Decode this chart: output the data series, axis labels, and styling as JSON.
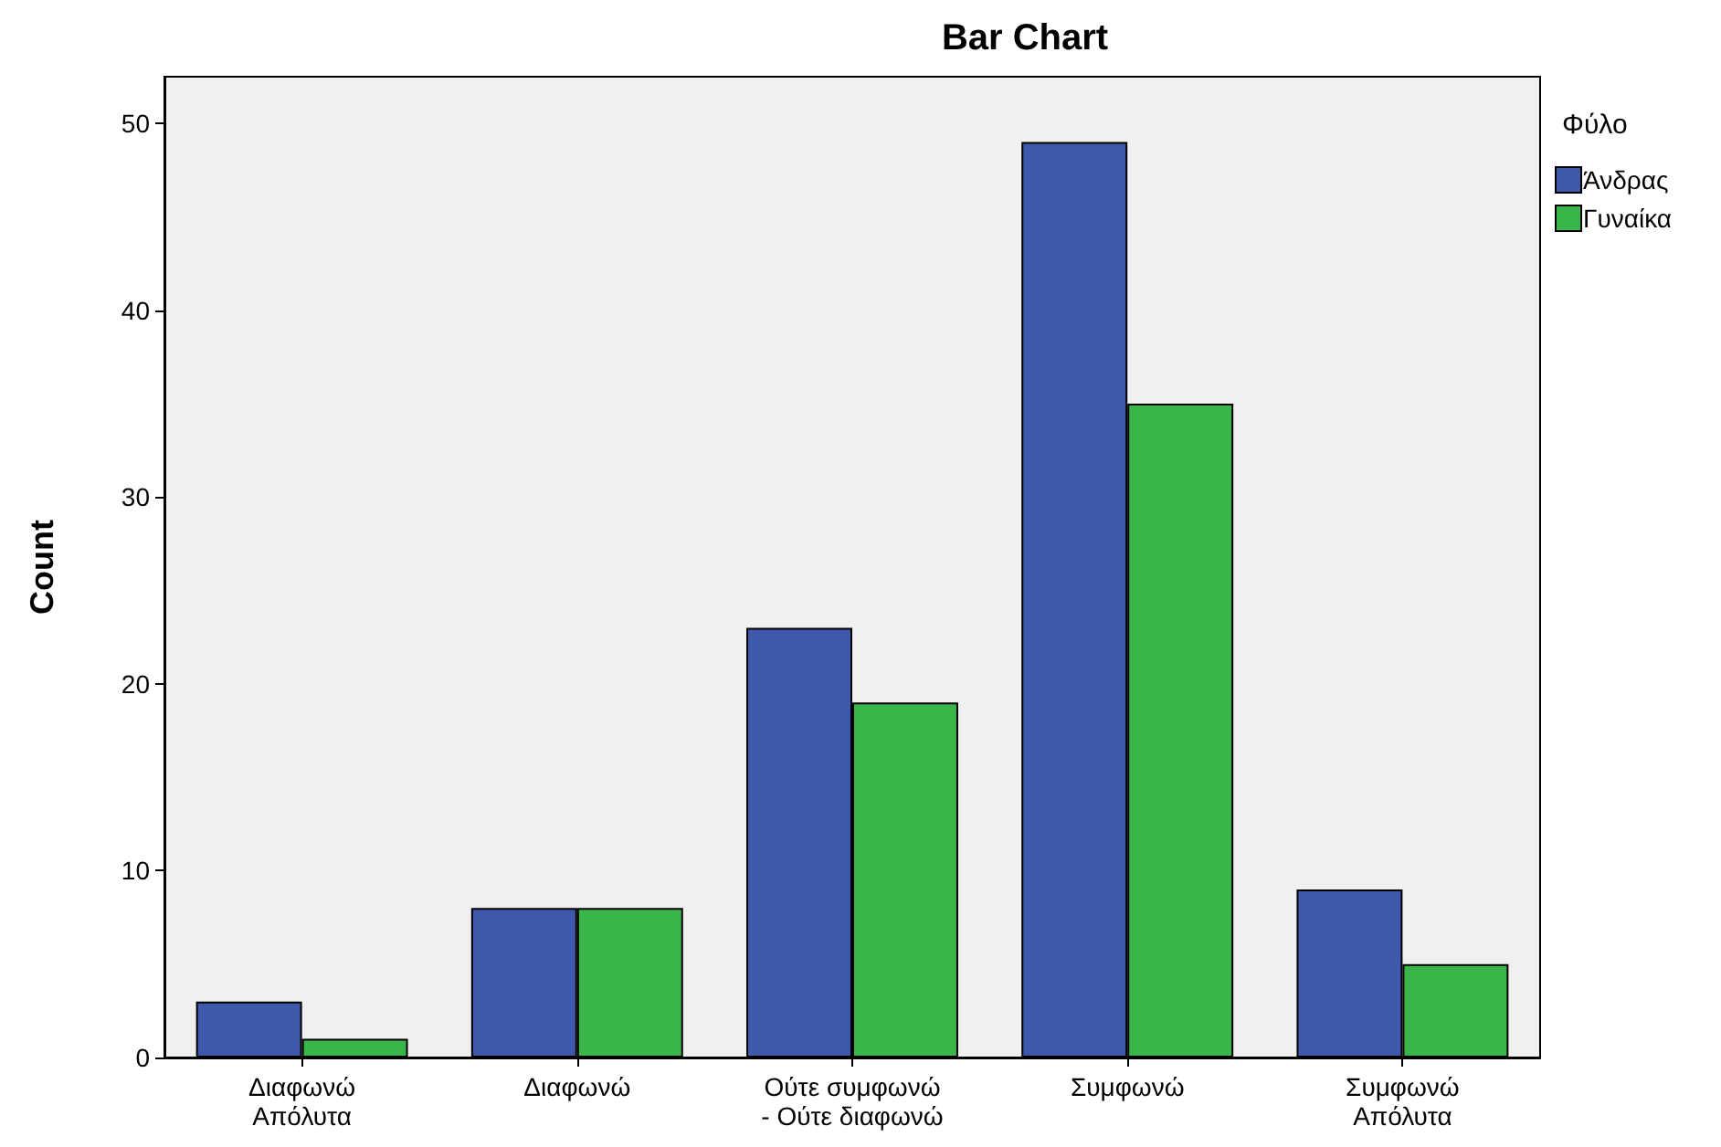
{
  "chart_data": {
    "type": "bar",
    "title": "Bar Chart",
    "ylabel": "Count",
    "legend_title": "Φύλο",
    "legend": "top right",
    "categories": [
      "Διαφωνώ\nΑπόλυτα",
      "Διαφωνώ",
      "Ούτε συμφωνώ\n- Ούτε διαφωνώ",
      "Συμφωνώ",
      "Συμφωνώ\nΑπόλυτα"
    ],
    "series": [
      {
        "name": "Άνδρας",
        "color": "#3e58ac",
        "values": [
          3,
          8,
          23,
          49,
          9
        ]
      },
      {
        "name": "Γυναίκα",
        "color": "#3ab54a",
        "values": [
          1,
          8,
          19,
          35,
          5
        ]
      }
    ],
    "ylim": [
      0,
      52.5
    ],
    "yticks": [
      0,
      10,
      20,
      30,
      40,
      50
    ]
  }
}
